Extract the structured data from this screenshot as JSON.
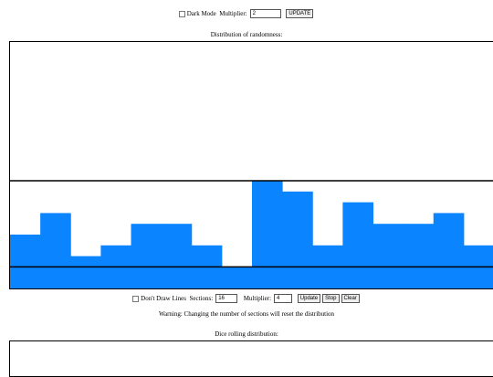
{
  "header": {
    "dark_mode_label": "Dark Mode",
    "multiplier_label": "Multiplier:",
    "multiplier_value": "2",
    "update_button": "UPDATE"
  },
  "distribution": {
    "title": "Distribution of randomness:",
    "counts": [
      5,
      7,
      3,
      4,
      6,
      6,
      4,
      2,
      10,
      9,
      4,
      8,
      6,
      6,
      7,
      4
    ]
  },
  "controls": {
    "dont_draw_lines_label": "Don't Draw Lines",
    "sections_label": "Sections:",
    "sections_value": "16",
    "multiplier_label": "Multiplier:",
    "multiplier_value": "4",
    "buttons": [
      "Update",
      "Stop",
      "Clear"
    ],
    "warning": "Warning: Changing the number of sections will reset the distribution"
  },
  "dice": {
    "title": "Dice rolling distribution:"
  }
}
